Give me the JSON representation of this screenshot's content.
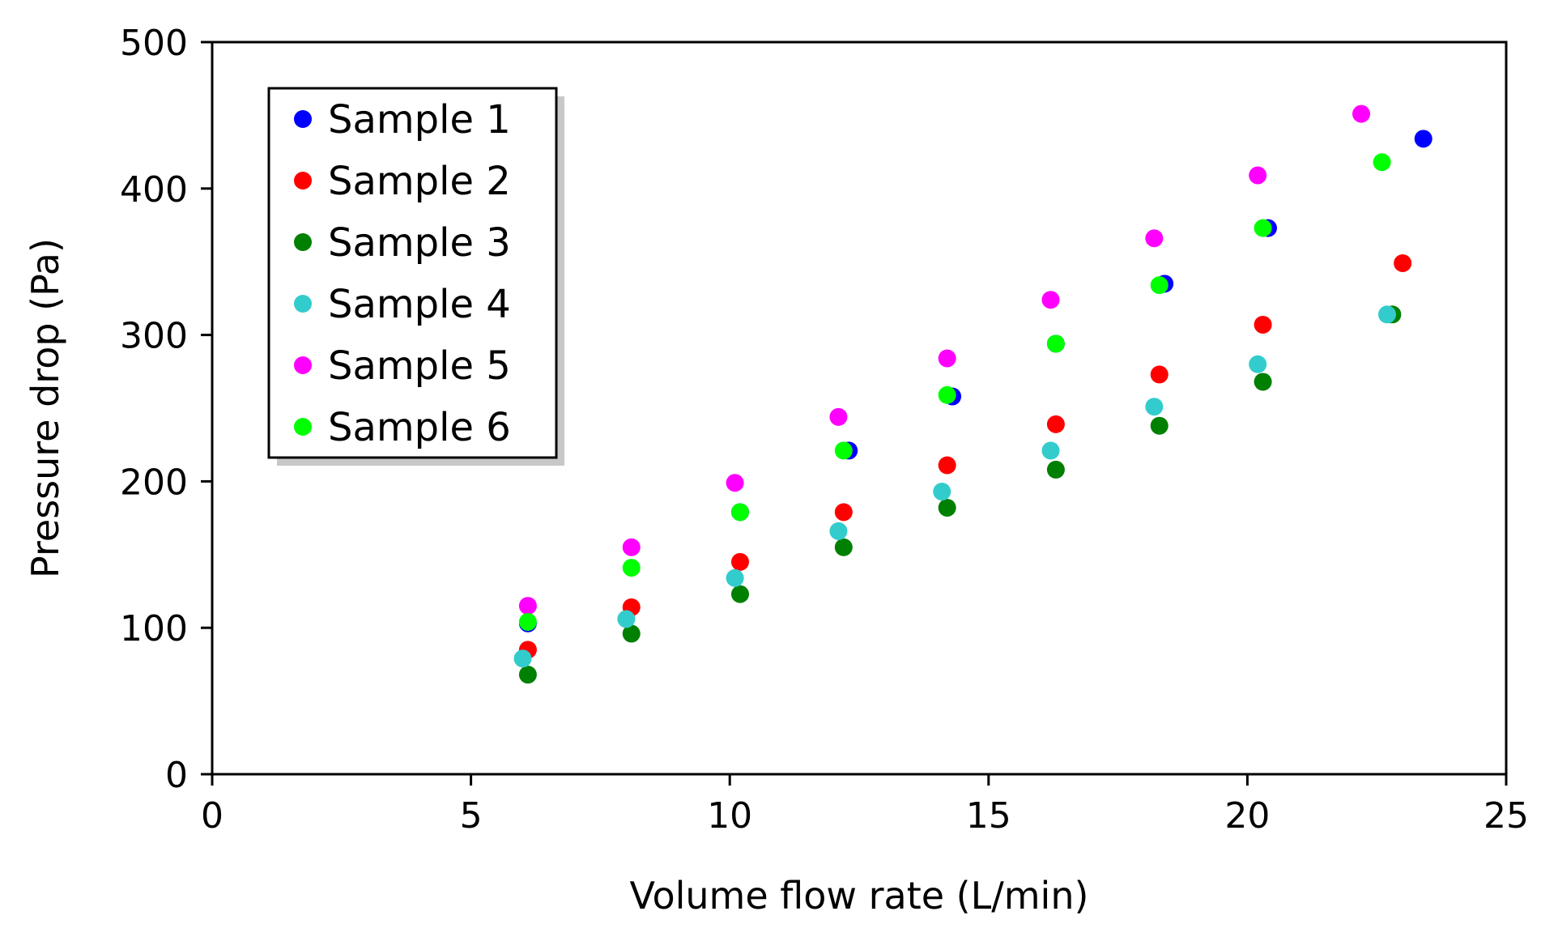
{
  "chart_data": {
    "type": "scatter",
    "title": "",
    "xlabel": "Volume flow rate (L/min)",
    "ylabel": "Pressure drop (Pa)",
    "xlim": [
      0,
      25
    ],
    "ylim": [
      0,
      500
    ],
    "xticks": [
      0,
      5,
      10,
      15,
      20,
      25
    ],
    "yticks": [
      0,
      100,
      200,
      300,
      400,
      500
    ],
    "grid": false,
    "legend_position": "top-left",
    "series": [
      {
        "name": "Sample 1",
        "color": "#0000ff",
        "points": [
          [
            6.1,
            103
          ],
          [
            10.2,
            179
          ],
          [
            12.3,
            221
          ],
          [
            14.3,
            258
          ],
          [
            16.3,
            294
          ],
          [
            18.4,
            335
          ],
          [
            20.4,
            373
          ],
          [
            23.4,
            434
          ]
        ]
      },
      {
        "name": "Sample 2",
        "color": "#ff0000",
        "points": [
          [
            6.1,
            85
          ],
          [
            8.1,
            114
          ],
          [
            10.2,
            145
          ],
          [
            12.2,
            179
          ],
          [
            14.2,
            211
          ],
          [
            16.3,
            239
          ],
          [
            18.3,
            273
          ],
          [
            20.3,
            307
          ],
          [
            23.0,
            349
          ]
        ]
      },
      {
        "name": "Sample 3",
        "color": "#008000",
        "points": [
          [
            6.1,
            68
          ],
          [
            8.1,
            96
          ],
          [
            10.2,
            123
          ],
          [
            12.2,
            155
          ],
          [
            14.2,
            182
          ],
          [
            16.3,
            208
          ],
          [
            18.3,
            238
          ],
          [
            20.3,
            268
          ],
          [
            22.8,
            314
          ]
        ]
      },
      {
        "name": "Sample 4",
        "color": "#33cccc",
        "points": [
          [
            6.0,
            79
          ],
          [
            8.0,
            106
          ],
          [
            10.1,
            134
          ],
          [
            12.1,
            166
          ],
          [
            14.1,
            193
          ],
          [
            16.2,
            221
          ],
          [
            18.2,
            251
          ],
          [
            20.2,
            280
          ],
          [
            22.7,
            314
          ]
        ]
      },
      {
        "name": "Sample 5",
        "color": "#ff00ff",
        "points": [
          [
            6.1,
            115
          ],
          [
            8.1,
            155
          ],
          [
            10.1,
            199
          ],
          [
            12.1,
            244
          ],
          [
            14.2,
            284
          ],
          [
            16.2,
            324
          ],
          [
            18.2,
            366
          ],
          [
            20.2,
            409
          ],
          [
            22.2,
            451
          ]
        ]
      },
      {
        "name": "Sample 6",
        "color": "#00ff00",
        "points": [
          [
            6.1,
            104
          ],
          [
            8.1,
            141
          ],
          [
            10.2,
            179
          ],
          [
            12.2,
            221
          ],
          [
            14.2,
            259
          ],
          [
            16.3,
            294
          ],
          [
            18.3,
            334
          ],
          [
            20.3,
            373
          ],
          [
            22.6,
            418
          ]
        ]
      }
    ]
  }
}
